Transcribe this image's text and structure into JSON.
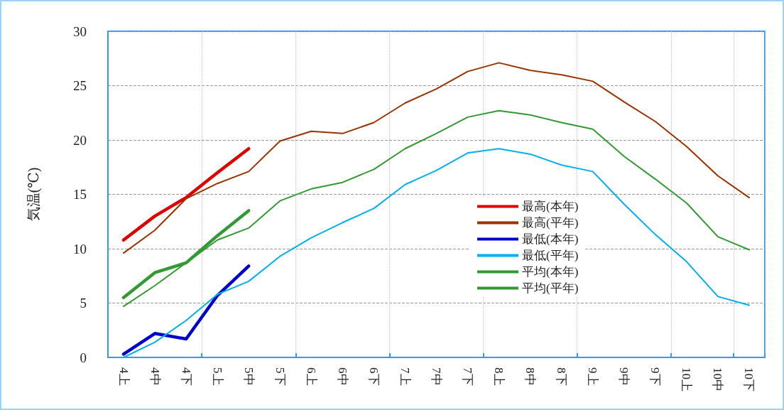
{
  "chart_data": {
    "type": "line",
    "ylabel": "気温(℃)",
    "categories": [
      "4上",
      "4中",
      "4下",
      "5上",
      "5中",
      "5下",
      "6上",
      "6中",
      "6下",
      "7上",
      "7中",
      "7下",
      "8上",
      "8中",
      "8下",
      "9上",
      "9中",
      "9下",
      "10上",
      "10中",
      "10下"
    ],
    "series": [
      {
        "name": "最高(本年)",
        "color": "#e00000",
        "values": [
          10.8,
          13.0,
          14.7,
          17.0,
          19.2,
          null,
          null,
          null,
          null,
          null,
          null,
          null,
          null,
          null,
          null,
          null,
          null,
          null,
          null,
          null,
          null
        ]
      },
      {
        "name": "最高(平年)",
        "color": "#993300",
        "values": [
          9.6,
          11.7,
          14.6,
          16.0,
          17.1,
          19.9,
          20.8,
          20.6,
          21.6,
          23.4,
          24.7,
          26.3,
          27.1,
          26.4,
          26.0,
          25.4,
          23.5,
          21.7,
          19.4,
          16.7,
          14.7
        ]
      },
      {
        "name": "最低(本年)",
        "color": "#0000cc",
        "values": [
          0.3,
          2.2,
          1.7,
          5.7,
          8.4,
          null,
          null,
          null,
          null,
          null,
          null,
          null,
          null,
          null,
          null,
          null,
          null,
          null,
          null,
          null,
          null
        ]
      },
      {
        "name": "最低(平年)",
        "color": "#00b0f0",
        "values": [
          0.0,
          1.4,
          3.4,
          5.8,
          7.0,
          9.3,
          11.0,
          12.4,
          13.7,
          15.9,
          17.2,
          18.8,
          19.2,
          18.7,
          17.7,
          17.1,
          14.1,
          11.3,
          8.8,
          5.6,
          4.8
        ]
      },
      {
        "name": "平均(本年)",
        "color": "#339933",
        "values": [
          5.5,
          7.8,
          8.7,
          11.2,
          13.5,
          null,
          null,
          null,
          null,
          null,
          null,
          null,
          null,
          null,
          null,
          null,
          null,
          null,
          null,
          null,
          null
        ]
      },
      {
        "name": "平均(平年)",
        "color": "#339933",
        "values": [
          4.7,
          6.6,
          8.7,
          10.8,
          11.9,
          14.4,
          15.5,
          16.1,
          17.3,
          19.2,
          20.6,
          22.1,
          22.7,
          22.3,
          21.6,
          21.0,
          18.5,
          16.4,
          14.2,
          11.1,
          9.9
        ]
      }
    ],
    "ylim": [
      0,
      30
    ],
    "yticks": [
      0,
      5,
      10,
      15,
      20,
      25,
      30
    ],
    "grid": true,
    "legend": "center",
    "marker": "none",
    "line_style": "solid"
  }
}
